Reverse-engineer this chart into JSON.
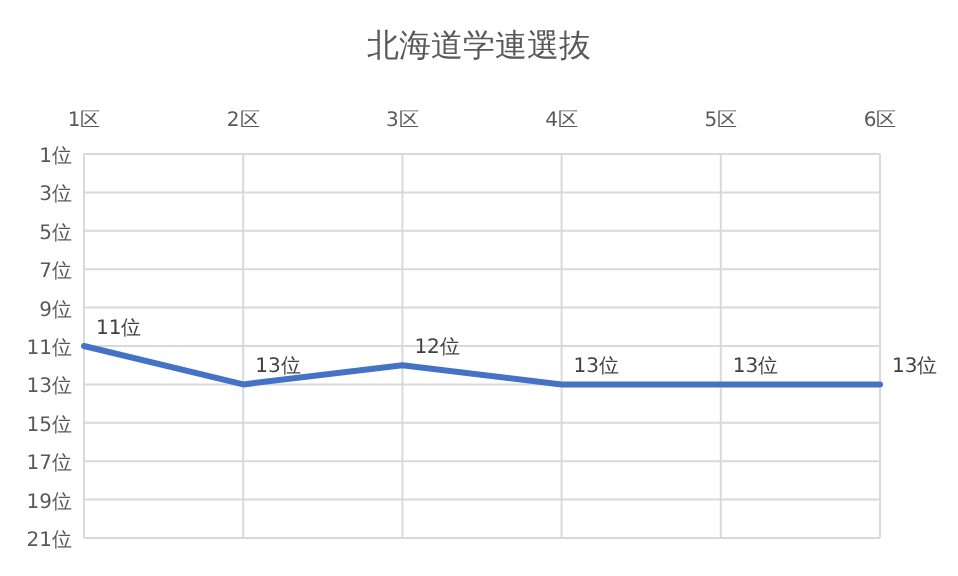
{
  "chart_data": {
    "type": "line",
    "title": "北海道学連選抜",
    "categories": [
      "1区",
      "2区",
      "3区",
      "4区",
      "5区",
      "6区"
    ],
    "series": [
      {
        "color": "#4472c4",
        "values": [
          11,
          13,
          12,
          13,
          13,
          13
        ],
        "value_labels": [
          "11位",
          "13位",
          "12位",
          "13位",
          "13位",
          "13位"
        ]
      }
    ],
    "ylim": [
      21,
      1
    ],
    "yticks": [
      {
        "value": 1,
        "label": "1位"
      },
      {
        "value": 3,
        "label": "3位"
      },
      {
        "value": 5,
        "label": "5位"
      },
      {
        "value": 7,
        "label": "7位"
      },
      {
        "value": 9,
        "label": "9位"
      },
      {
        "value": 11,
        "label": "11位"
      },
      {
        "value": 13,
        "label": "13位"
      },
      {
        "value": 15,
        "label": "15位"
      },
      {
        "value": 17,
        "label": "17位"
      },
      {
        "value": 19,
        "label": "19位"
      },
      {
        "value": 21,
        "label": "21位"
      }
    ],
    "grid": true,
    "marker": "none",
    "line_style": "solid"
  }
}
